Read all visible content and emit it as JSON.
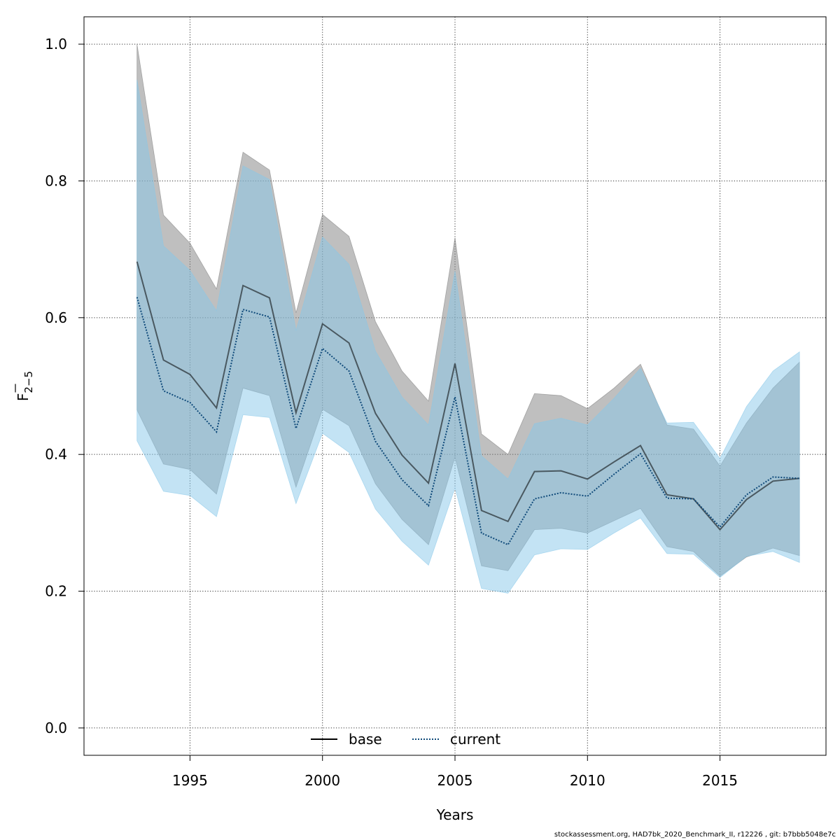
{
  "chart_data": {
    "type": "line",
    "xlabel": "Years",
    "ylabel": "F",
    "ylabel_sub": "2−5",
    "xlim": [
      1991,
      2019
    ],
    "ylim": [
      -0.04,
      1.04
    ],
    "xticks": [
      "1995",
      "2000",
      "2005",
      "2010",
      "2015"
    ],
    "yticks": [
      "0.0",
      "0.2",
      "0.4",
      "0.6",
      "0.8",
      "1.0"
    ],
    "grid": true,
    "legend_position": "bottom",
    "x": [
      1993,
      1994,
      1995,
      1996,
      1997,
      1998,
      1999,
      2000,
      2001,
      2002,
      2003,
      2004,
      2005,
      2006,
      2007,
      2008,
      2009,
      2010,
      2011,
      2012,
      2013,
      2014,
      2015,
      2016,
      2017,
      2018
    ],
    "series": [
      {
        "name": "base",
        "style": "solid",
        "color": "#000000",
        "band_color": "#7f7f7f",
        "values": [
          0.682,
          0.538,
          0.517,
          0.468,
          0.647,
          0.629,
          0.461,
          0.591,
          0.563,
          0.46,
          0.399,
          0.358,
          0.533,
          0.318,
          0.302,
          0.375,
          0.376,
          0.364,
          0.389,
          0.413,
          0.341,
          0.335,
          0.29,
          0.334,
          0.361,
          0.365
        ],
        "lower": [
          0.465,
          0.386,
          0.378,
          0.342,
          0.497,
          0.486,
          0.352,
          0.466,
          0.442,
          0.357,
          0.305,
          0.268,
          0.396,
          0.237,
          0.23,
          0.29,
          0.292,
          0.285,
          0.303,
          0.321,
          0.265,
          0.258,
          0.222,
          0.25,
          0.263,
          0.252
        ],
        "upper": [
          1.0,
          0.75,
          0.709,
          0.642,
          0.842,
          0.816,
          0.607,
          0.751,
          0.719,
          0.594,
          0.522,
          0.478,
          0.717,
          0.43,
          0.4,
          0.489,
          0.486,
          0.467,
          0.497,
          0.532,
          0.443,
          0.437,
          0.383,
          0.446,
          0.497,
          0.535
        ]
      },
      {
        "name": "current",
        "style": "dotted",
        "color": "#0f4a7a",
        "band_color": "#87c8ea",
        "values": [
          0.63,
          0.493,
          0.476,
          0.433,
          0.612,
          0.601,
          0.438,
          0.555,
          0.522,
          0.419,
          0.363,
          0.325,
          0.484,
          0.285,
          0.268,
          0.335,
          0.344,
          0.339,
          0.371,
          0.401,
          0.336,
          0.335,
          0.294,
          0.341,
          0.367,
          0.365
        ],
        "lower": [
          0.42,
          0.346,
          0.34,
          0.309,
          0.458,
          0.454,
          0.328,
          0.431,
          0.403,
          0.32,
          0.273,
          0.238,
          0.351,
          0.204,
          0.197,
          0.253,
          0.262,
          0.261,
          0.285,
          0.307,
          0.255,
          0.254,
          0.22,
          0.251,
          0.258,
          0.242
        ],
        "upper": [
          0.948,
          0.705,
          0.669,
          0.61,
          0.822,
          0.802,
          0.581,
          0.718,
          0.678,
          0.551,
          0.484,
          0.443,
          0.668,
          0.398,
          0.364,
          0.445,
          0.453,
          0.443,
          0.482,
          0.526,
          0.446,
          0.447,
          0.394,
          0.47,
          0.522,
          0.55
        ]
      }
    ]
  },
  "footer": "stockassessment.org, HAD7bk_2020_Benchmark_II, r12226 , git: b7bbb5048e7c"
}
